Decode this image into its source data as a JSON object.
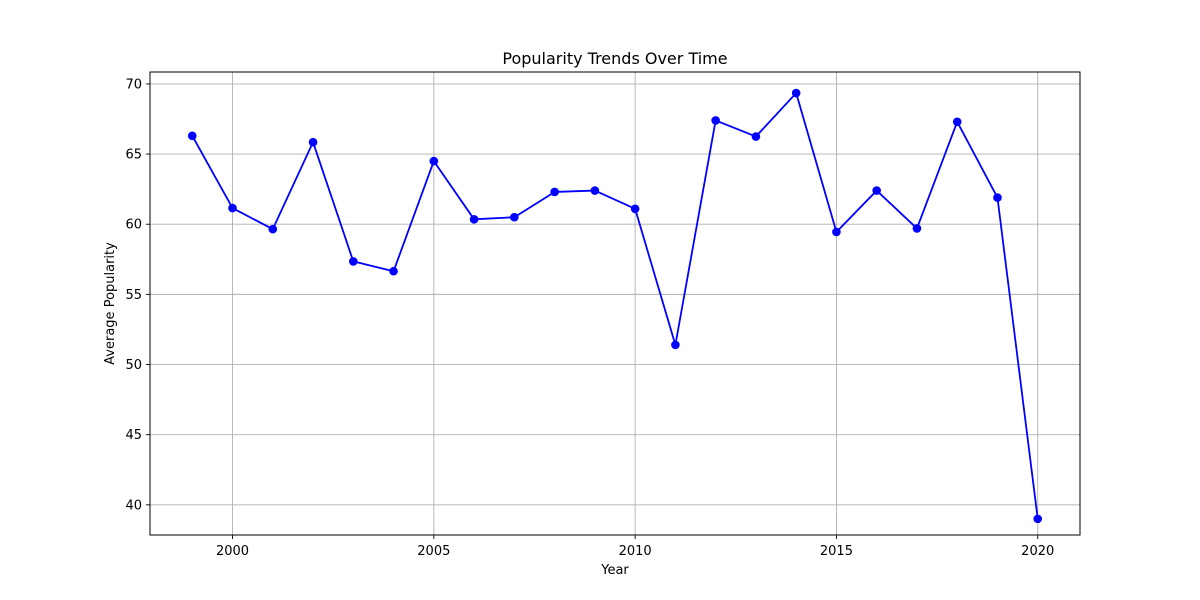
{
  "chart_data": {
    "type": "line",
    "title": "Popularity Trends Over Time",
    "xlabel": "Year",
    "ylabel": "Average Popularity",
    "xlim": [
      1997.95,
      2021.05
    ],
    "ylim": [
      37.85,
      70.85
    ],
    "xticks": [
      2000,
      2005,
      2010,
      2015,
      2020
    ],
    "yticks": [
      40,
      45,
      50,
      55,
      60,
      65,
      70
    ],
    "grid": true,
    "series": [
      {
        "color": "#0000ff",
        "marker": "circle",
        "x": [
          1999,
          2000,
          2001,
          2002,
          2003,
          2004,
          2005,
          2006,
          2007,
          2008,
          2009,
          2010,
          2011,
          2012,
          2013,
          2014,
          2015,
          2016,
          2017,
          2018,
          2019,
          2020
        ],
        "values": [
          66.3,
          61.15,
          59.65,
          65.85,
          57.35,
          56.65,
          64.5,
          60.35,
          60.5,
          62.3,
          62.4,
          61.1,
          51.4,
          67.4,
          66.25,
          69.35,
          59.45,
          62.4,
          59.7,
          67.3,
          61.9,
          39.0
        ]
      }
    ]
  },
  "colors": {
    "axes_edge": "#000000",
    "grid": "#b0b0b0",
    "line": "#0000ff"
  }
}
